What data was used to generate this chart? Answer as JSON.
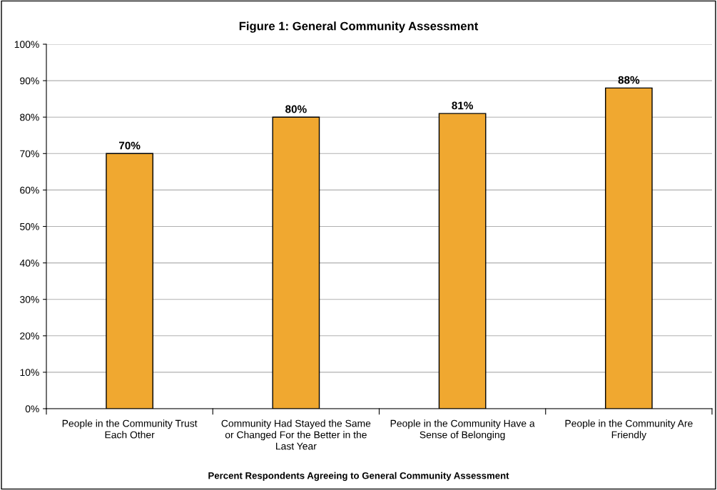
{
  "chart_data": {
    "type": "bar",
    "title": "Figure 1: General Community Assessment",
    "xlabel": "Percent Respondents Agreeing to General Community Assessment",
    "categories": [
      "People in the Community Trust Each Other",
      "Community Had Stayed the Same or Changed For the Better in the Last Year",
      "People in the Community Have a Sense of Belonging",
      "People in the Community Are Friendly"
    ],
    "values": [
      70,
      80,
      81,
      88
    ],
    "value_labels": [
      "70%",
      "80%",
      "81%",
      "88%"
    ],
    "color": "#f0a830",
    "ylim": [
      0,
      100
    ],
    "yticks": [
      {
        "value": 0,
        "label": "0%"
      },
      {
        "value": 10,
        "label": "10%"
      },
      {
        "value": 20,
        "label": "20%"
      },
      {
        "value": 30,
        "label": "30%"
      },
      {
        "value": 40,
        "label": "40%"
      },
      {
        "value": 50,
        "label": "50%"
      },
      {
        "value": 60,
        "label": "60%"
      },
      {
        "value": 70,
        "label": "70%"
      },
      {
        "value": 80,
        "label": "80%"
      },
      {
        "value": 90,
        "label": "90%"
      },
      {
        "value": 100,
        "label": "100%"
      }
    ],
    "grid": "y"
  }
}
